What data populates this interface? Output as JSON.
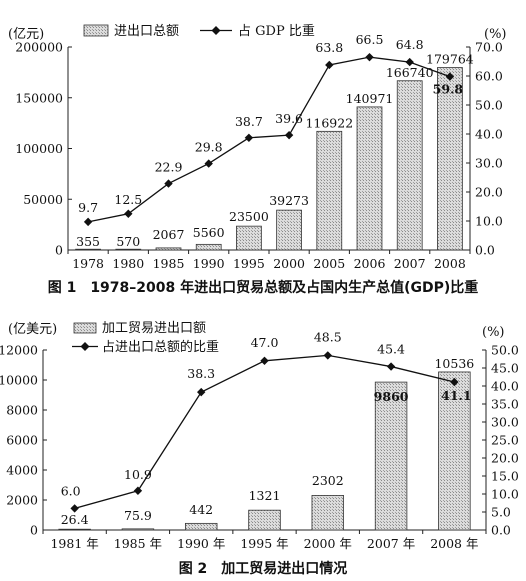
{
  "chart_data": [
    {
      "type": "bar+line",
      "caption": "图 1　1978–2008 年进出口贸易总额及占国内生产总值(GDP)比重",
      "left_unit": "(亿元)",
      "right_unit": "(%)",
      "categories": [
        "1978",
        "1980",
        "1985",
        "1990",
        "1995",
        "2000",
        "2005",
        "2006",
        "2007",
        "2008"
      ],
      "series": [
        {
          "name": "进出口总额",
          "type": "bar",
          "axis": "left",
          "values": [
            355,
            570,
            2067,
            5560,
            23500,
            39273,
            116922,
            140971,
            166740,
            179764
          ],
          "labels": [
            "355",
            "570",
            "2067",
            "5560",
            "23500",
            "39273",
            "116922",
            "140971",
            "166740",
            "179764"
          ]
        },
        {
          "name": "占 GDP 比重",
          "type": "line",
          "axis": "right",
          "values": [
            9.7,
            12.5,
            22.9,
            29.8,
            38.7,
            39.6,
            63.8,
            66.5,
            64.8,
            59.8
          ],
          "labels": [
            "9.7",
            "12.5",
            "22.9",
            "29.8",
            "38.7",
            "39.6",
            "63.8",
            "66.5",
            "64.8",
            "59.8"
          ]
        }
      ],
      "left_ylim": [
        0,
        200000
      ],
      "left_ticks": [
        "0",
        "50000",
        "100000",
        "150000",
        "200000"
      ],
      "right_ylim": [
        0,
        70
      ],
      "right_ticks": [
        "0.0",
        "10.0",
        "20.0",
        "30.0",
        "40.0",
        "50.0",
        "60.0",
        "70.0"
      ],
      "legend_placement": "top"
    },
    {
      "type": "bar+line",
      "caption": "图 2　加工贸易进出口情况",
      "left_unit": "(亿美元)",
      "right_unit": "(%)",
      "categories": [
        "1981 年",
        "1985 年",
        "1990 年",
        "1995 年",
        "2000 年",
        "2007 年",
        "2008 年"
      ],
      "series": [
        {
          "name": "加工贸易进出口额",
          "type": "bar",
          "axis": "left",
          "values": [
            26.4,
            75.9,
            442,
            1321,
            2302,
            9860,
            10536
          ],
          "labels": [
            "26.4",
            "75.9",
            "442",
            "1321",
            "2302",
            "9860",
            "10536"
          ]
        },
        {
          "name": "占进出口总额的比重",
          "type": "line",
          "axis": "right",
          "values": [
            6.0,
            10.9,
            38.3,
            47.0,
            48.5,
            45.4,
            41.1
          ],
          "labels": [
            "6.0",
            "10.9",
            "38.3",
            "47.0",
            "48.5",
            "45.4",
            "41.1"
          ]
        }
      ],
      "left_ylim": [
        0,
        12000
      ],
      "left_ticks": [
        "0",
        "2000",
        "4000",
        "6000",
        "8000",
        "10000",
        "12000"
      ],
      "right_ylim": [
        0,
        50
      ],
      "right_ticks": [
        "0.0",
        "5.0",
        "10.0",
        "15.0",
        "20.0",
        "25.0",
        "30.0",
        "35.0",
        "40.0",
        "45.0",
        "50.0"
      ],
      "legend_placement": "top-left"
    }
  ],
  "colors": {
    "ink": "#111111",
    "bar_fill": "#cfcfcf",
    "bar_stroke": "#333333"
  }
}
